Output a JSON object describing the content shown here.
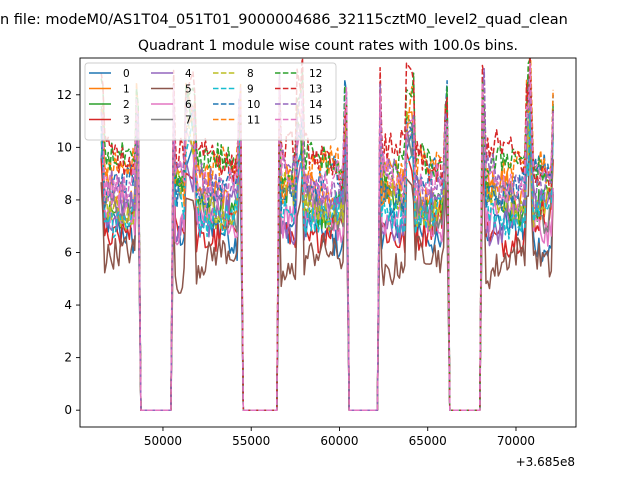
{
  "chart_data": {
    "type": "line",
    "suptitle": "n file: modeM0/AS1T04_051T01_9000004686_32115cztM0_level2_quad_clean",
    "title": "Quadrant 1 module wise count rates with 100.0s bins.",
    "xlabel": "",
    "ylabel": "",
    "x_offset_label": "+3.685e8",
    "xlim": [
      45300,
      73400
    ],
    "ylim": [
      -0.64,
      13.4
    ],
    "xticks": [
      50000,
      55000,
      60000,
      65000,
      70000
    ],
    "xtick_labels": [
      "50000",
      "55000",
      "60000",
      "65000",
      "70000"
    ],
    "yticks": [
      0,
      2,
      4,
      6,
      8,
      10,
      12
    ],
    "ytick_labels": [
      "0",
      "2",
      "4",
      "6",
      "8",
      "10",
      "12"
    ],
    "legend_position": "top-left",
    "legend_columns": 4,
    "active_segments": [
      [
        46500,
        48600
      ],
      [
        50600,
        51300
      ],
      [
        51700,
        54400
      ],
      [
        56600,
        57600
      ],
      [
        57800,
        60400
      ],
      [
        62300,
        63800
      ],
      [
        64100,
        66100
      ],
      [
        68100,
        70700
      ],
      [
        70800,
        72100
      ]
    ],
    "bin_seconds": 100,
    "series": [
      {
        "name": "0",
        "color": "#1f77b4",
        "dash": "solid",
        "mean": 6.6
      },
      {
        "name": "1",
        "color": "#ff7f0e",
        "dash": "solid",
        "mean": 8.4
      },
      {
        "name": "2",
        "color": "#2ca02c",
        "dash": "solid",
        "mean": 8.1
      },
      {
        "name": "3",
        "color": "#d62728",
        "dash": "solid",
        "mean": 7.0
      },
      {
        "name": "4",
        "color": "#9467bd",
        "dash": "solid",
        "mean": 7.4
      },
      {
        "name": "5",
        "color": "#8c564b",
        "dash": "solid",
        "mean": 5.5
      },
      {
        "name": "6",
        "color": "#e377c2",
        "dash": "solid",
        "mean": 7.1
      },
      {
        "name": "7",
        "color": "#7f7f7f",
        "dash": "solid",
        "mean": 7.8
      },
      {
        "name": "8",
        "color": "#bcbd22",
        "dash": "dashed",
        "mean": 8.0
      },
      {
        "name": "9",
        "color": "#17becf",
        "dash": "dashed",
        "mean": 7.7
      },
      {
        "name": "10",
        "color": "#1f77b4",
        "dash": "dashed",
        "mean": 8.6
      },
      {
        "name": "11",
        "color": "#ff7f0e",
        "dash": "dashed",
        "mean": 8.9
      },
      {
        "name": "12",
        "color": "#2ca02c",
        "dash": "dashed",
        "mean": 9.1
      },
      {
        "name": "13",
        "color": "#d62728",
        "dash": "dashed",
        "mean": 9.5
      },
      {
        "name": "14",
        "color": "#9467bd",
        "dash": "dashed",
        "mean": 8.8
      },
      {
        "name": "15",
        "color": "#e377c2",
        "dash": "dashed",
        "mean": 9.0
      }
    ]
  }
}
